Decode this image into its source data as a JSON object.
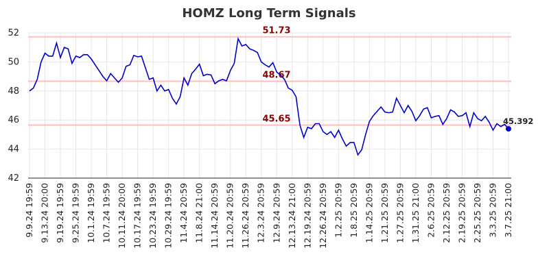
{
  "chart_data": {
    "type": "line",
    "title": "HOMZ Long Term Signals",
    "categories": [
      "9.9.24 19:59",
      null,
      null,
      null,
      "9.13.24 20:00",
      null,
      null,
      null,
      "9.19.24 19:59",
      null,
      null,
      null,
      "9.25.24 19:59",
      null,
      null,
      null,
      "10.1.24 19:59",
      null,
      null,
      null,
      "10.7.24 19:59",
      null,
      null,
      null,
      "10.11.24 20:00",
      null,
      null,
      null,
      "10.17.24 19:59",
      null,
      null,
      null,
      "10.23.24 19:59",
      null,
      null,
      null,
      "10.29.24 19:59",
      null,
      null,
      null,
      "11.4.24 20:59",
      null,
      null,
      null,
      "11.8.24 21:00",
      null,
      null,
      null,
      "11.14.24 20:59",
      null,
      null,
      null,
      "11.20.24 20:59",
      null,
      null,
      null,
      "11.26.24 20:59",
      null,
      null,
      null,
      "12.3.24 20:59",
      null,
      null,
      null,
      "12.9.24 20:59",
      null,
      null,
      null,
      "12.13.24 21:00",
      null,
      null,
      null,
      "12.19.24 20:59",
      null,
      null,
      null,
      "12.26.24 20:59",
      null,
      null,
      null,
      "1.2.25 20:59",
      null,
      null,
      null,
      "1.8.25 20:59",
      null,
      null,
      null,
      "1.14.25 20:59",
      null,
      null,
      null,
      "1.21.25 20:59",
      null,
      null,
      null,
      "1.27.25 20:59",
      null,
      null,
      null,
      "1.31.25 21:00",
      null,
      null,
      null,
      "2.6.25 20:59",
      null,
      null,
      null,
      "2.12.25 20:59",
      null,
      null,
      null,
      "2.19.25 20:59",
      null,
      null,
      null,
      "2.25.25 20:59",
      null,
      null,
      null,
      "3.3.25 20:59",
      null,
      null,
      null,
      "3.7.25 21:00"
    ],
    "values": [
      48.0,
      48.2,
      48.8,
      50.0,
      50.6,
      50.4,
      50.4,
      51.3,
      50.3,
      51.0,
      50.9,
      49.9,
      50.4,
      50.3,
      50.5,
      50.5,
      50.2,
      49.8,
      49.4,
      49.0,
      48.7,
      49.2,
      48.9,
      48.6,
      48.9,
      49.7,
      49.8,
      50.45,
      50.35,
      50.4,
      49.6,
      48.8,
      48.9,
      48.0,
      48.4,
      48.0,
      48.1,
      47.5,
      47.1,
      47.6,
      48.9,
      48.4,
      49.2,
      49.5,
      49.85,
      49.05,
      49.15,
      49.1,
      48.5,
      48.7,
      48.8,
      48.7,
      49.4,
      49.9,
      51.6,
      51.1,
      51.2,
      50.9,
      50.8,
      50.65,
      50.0,
      49.8,
      49.65,
      49.95,
      49.3,
      49.1,
      48.8,
      48.2,
      48.05,
      47.6,
      45.65,
      44.8,
      45.5,
      45.4,
      45.75,
      45.75,
      45.2,
      45.0,
      45.2,
      44.8,
      45.3,
      44.7,
      44.2,
      44.45,
      44.45,
      43.6,
      43.95,
      45.0,
      45.9,
      46.3,
      46.6,
      46.9,
      46.55,
      46.5,
      46.55,
      47.5,
      47.0,
      46.5,
      47.0,
      46.6,
      45.95,
      46.3,
      46.75,
      46.85,
      46.15,
      46.25,
      46.3,
      45.7,
      46.1,
      46.7,
      46.55,
      46.25,
      46.3,
      46.5,
      45.55,
      46.5,
      46.1,
      45.95,
      46.25,
      45.85,
      45.3,
      45.75,
      45.55,
      45.7,
      45.392
    ],
    "color": "#0000cc",
    "hlines": [
      51.73,
      48.67,
      45.65
    ],
    "hline_color": "#ffbfbf",
    "hline_label_color": "#8b0000",
    "ylim": [
      42,
      52
    ],
    "yticks": [
      42,
      44,
      46,
      48,
      50,
      52
    ],
    "grid": true
  }
}
